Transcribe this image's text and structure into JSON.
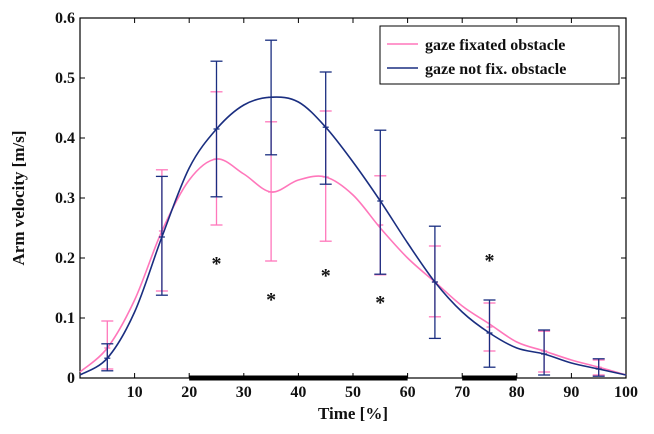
{
  "chart_data": {
    "type": "line",
    "xlabel": "Time [%]",
    "ylabel": "Arm velocity [m/s]",
    "xlim": [
      0,
      100
    ],
    "ylim": [
      0,
      0.6
    ],
    "xticks": [
      "10",
      "20",
      "30",
      "40",
      "50",
      "60",
      "70",
      "80",
      "90",
      "100"
    ],
    "yticks": [
      "0",
      "0.1",
      "0.2",
      "0.3",
      "0.4",
      "0.5",
      "0.6"
    ],
    "grid": false,
    "legend_position": "top-right",
    "series": [
      {
        "name": "gaze fixated obstacle",
        "color": "#ff77bb",
        "curve": {
          "x": [
            0,
            5,
            10,
            15,
            20,
            25,
            30,
            35,
            40,
            45,
            50,
            55,
            60,
            65,
            70,
            75,
            80,
            85,
            90,
            95,
            100
          ],
          "y": [
            0.01,
            0.05,
            0.13,
            0.245,
            0.33,
            0.365,
            0.34,
            0.31,
            0.33,
            0.335,
            0.305,
            0.25,
            0.2,
            0.16,
            0.12,
            0.09,
            0.06,
            0.045,
            0.03,
            0.018,
            0.005
          ]
        },
        "points": {
          "x": [
            5,
            15,
            25,
            35,
            45,
            55,
            65,
            75,
            85,
            95
          ],
          "mean": [
            0.05,
            0.245,
            0.365,
            0.31,
            0.335,
            0.255,
            0.16,
            0.085,
            0.045,
            0.018
          ],
          "lower": [
            0.015,
            0.145,
            0.255,
            0.195,
            0.228,
            0.172,
            0.102,
            0.045,
            0.01,
            0.005
          ],
          "upper": [
            0.095,
            0.347,
            0.477,
            0.427,
            0.445,
            0.337,
            0.22,
            0.125,
            0.078,
            0.03
          ]
        }
      },
      {
        "name": "gaze not fix. obstacle",
        "color": "#1a2e80",
        "curve": {
          "x": [
            0,
            5,
            10,
            15,
            20,
            25,
            30,
            35,
            40,
            45,
            50,
            55,
            60,
            65,
            70,
            75,
            80,
            85,
            90,
            95,
            100
          ],
          "y": [
            0.005,
            0.033,
            0.11,
            0.235,
            0.35,
            0.415,
            0.455,
            0.468,
            0.46,
            0.418,
            0.36,
            0.295,
            0.225,
            0.16,
            0.11,
            0.075,
            0.05,
            0.04,
            0.025,
            0.015,
            0.005
          ]
        },
        "points": {
          "x": [
            5,
            15,
            25,
            35,
            45,
            55,
            65,
            75,
            85,
            95
          ],
          "mean": [
            0.033,
            0.235,
            0.415,
            0.468,
            0.418,
            0.295,
            0.16,
            0.075,
            0.04,
            0.015
          ],
          "lower": [
            0.012,
            0.138,
            0.302,
            0.372,
            0.323,
            0.173,
            0.066,
            0.018,
            0.005,
            0.003
          ],
          "upper": [
            0.057,
            0.336,
            0.528,
            0.563,
            0.51,
            0.413,
            0.253,
            0.13,
            0.08,
            0.032
          ]
        }
      }
    ],
    "annotations": [
      {
        "text": "*",
        "x": 25,
        "y": 0.2
      },
      {
        "text": "*",
        "x": 35,
        "y": 0.14
      },
      {
        "text": "*",
        "x": 45,
        "y": 0.18
      },
      {
        "text": "*",
        "x": 55,
        "y": 0.135
      },
      {
        "text": "*",
        "x": 75,
        "y": 0.205
      }
    ],
    "highlight_ranges": [
      {
        "x": [
          20,
          60
        ]
      },
      {
        "x": [
          70,
          80
        ]
      }
    ]
  }
}
